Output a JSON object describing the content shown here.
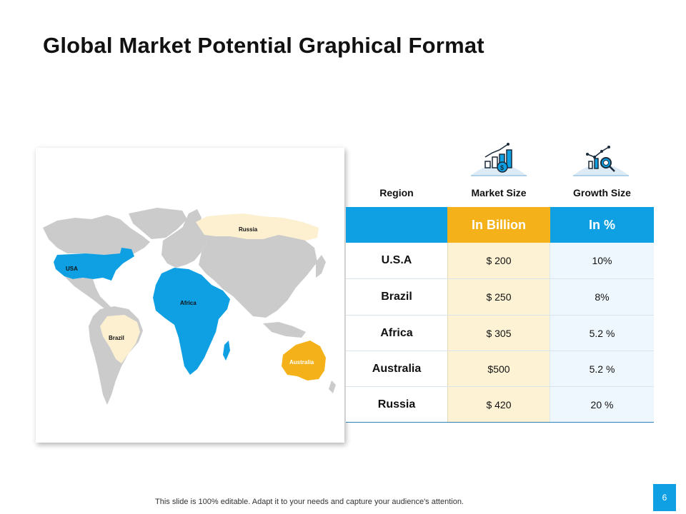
{
  "slide": {
    "title": "Global Market Potential Graphical Format",
    "footer": "This slide is 100% editable. Adapt it to your needs and capture your audience's attention.",
    "page_number": "6"
  },
  "map": {
    "labels": {
      "usa": "USA",
      "russia": "Russia",
      "africa": "Africa",
      "brazil": "Brazil",
      "australia": "Australia"
    },
    "colors": {
      "land": "#cbcbcb",
      "blue": "#0ea0e3",
      "cream": "#fdf0d0",
      "orange": "#f5b11a"
    }
  },
  "icons": {
    "market": "bar-chart-dollar-icon",
    "growth": "chart-magnifier-icon"
  },
  "table": {
    "headers": {
      "region": "Region",
      "market": "Market Size",
      "growth": "Growth Size"
    },
    "units": {
      "market": "In Billion",
      "growth": "In %"
    },
    "rows": [
      {
        "region": "U.S.A",
        "market": "$ 200",
        "growth": "10%"
      },
      {
        "region": "Brazil",
        "market": "$ 250",
        "growth": "8%"
      },
      {
        "region": "Africa",
        "market": "$ 305",
        "growth": "5.2 %"
      },
      {
        "region": "Australia",
        "market": "$500",
        "growth": "5.2 %"
      },
      {
        "region": "Russia",
        "market": "$ 420",
        "growth": "20 %"
      }
    ],
    "colors": {
      "band": "#0ea0e3",
      "market_header": "#f5b11a",
      "market_cells": "#fef2d4",
      "growth_cells": "#eef7fd"
    }
  }
}
